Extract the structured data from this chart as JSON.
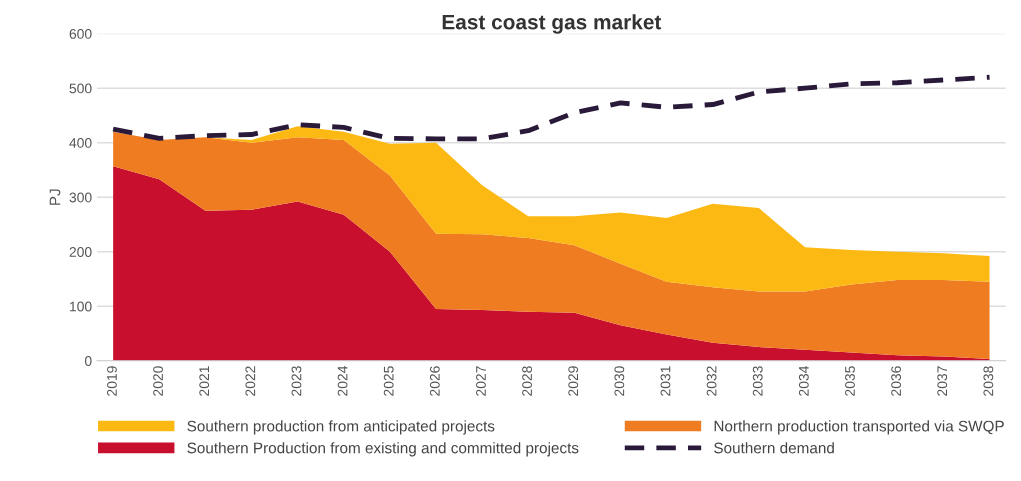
{
  "chart_data": {
    "type": "area",
    "title": "East coast gas market",
    "ylabel": "PJ",
    "categories": [
      "2019",
      "2020",
      "2021",
      "2022",
      "2023",
      "2024",
      "2025",
      "2026",
      "2027",
      "2028",
      "2029",
      "2030",
      "2031",
      "2032",
      "2033",
      "2034",
      "2035",
      "2036",
      "2037",
      "2038"
    ],
    "stacked": true,
    "ylim": [
      0,
      600
    ],
    "yticks": [
      0,
      100,
      200,
      300,
      400,
      500,
      600
    ],
    "grid": "y",
    "legend": "bottom",
    "series": [
      {
        "name": "Southern Production from existing and committed projects",
        "color": "#c8102e",
        "values": [
          357,
          333,
          275,
          277,
          292,
          268,
          200,
          95,
          93,
          90,
          88,
          65,
          48,
          33,
          25,
          20,
          15,
          10,
          8,
          3
        ]
      },
      {
        "name": "Northern production transported via SWQP",
        "color": "#f07c22",
        "values": [
          63,
          72,
          135,
          123,
          118,
          137,
          140,
          138,
          139,
          135,
          124,
          113,
          97,
          102,
          102,
          107,
          125,
          138,
          140,
          142
        ]
      },
      {
        "name": "Southern production from anticipated projects",
        "color": "#fdb913",
        "values": [
          0,
          0,
          0,
          5,
          20,
          15,
          58,
          167,
          90,
          40,
          53,
          94,
          117,
          153,
          153,
          81,
          63,
          52,
          49,
          47
        ]
      },
      {
        "name": "Southern demand",
        "type": "line",
        "line_style": "dashed",
        "color": "#2a1a3a",
        "values": [
          425,
          408,
          413,
          415,
          433,
          428,
          408,
          407,
          407,
          422,
          455,
          473,
          465,
          470,
          493,
          500,
          508,
          510,
          515,
          520
        ]
      }
    ]
  }
}
